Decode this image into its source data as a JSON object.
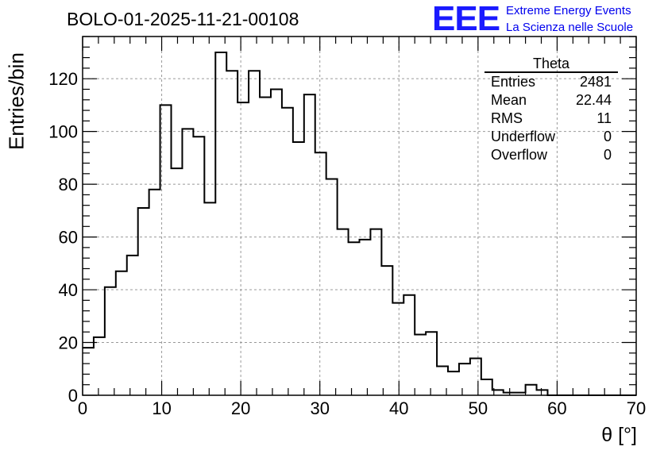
{
  "title": "BOLO-01-2025-11-21-00108",
  "logo": {
    "mark": "EEE",
    "line1": "Extreme Energy Events",
    "line2": "La Scienza nelle Scuole",
    "color": "#1a1aff"
  },
  "stats": {
    "title": "Theta",
    "rows": [
      {
        "label": "Entries",
        "value": "2481"
      },
      {
        "label": "Mean",
        "value": "22.44"
      },
      {
        "label": "RMS",
        "value": "11"
      },
      {
        "label": "Underflow",
        "value": "0"
      },
      {
        "label": "Overflow",
        "value": "0"
      }
    ]
  },
  "chart_data": {
    "type": "bar",
    "histogram": true,
    "xlabel": "θ [°]",
    "ylabel": "Entries/bin",
    "xlim": [
      0,
      70
    ],
    "ylim": [
      0,
      136
    ],
    "bin_width": 1.4,
    "xticks": [
      0,
      10,
      20,
      30,
      40,
      50,
      60,
      70
    ],
    "yticks": [
      0,
      20,
      40,
      60,
      80,
      100,
      120
    ],
    "grid": true,
    "values": [
      18,
      22,
      41,
      47,
      53,
      71,
      78,
      110,
      86,
      101,
      98,
      73,
      130,
      123,
      111,
      123,
      113,
      116,
      109,
      96,
      114,
      92,
      82,
      63,
      58,
      59,
      63,
      49,
      35,
      38,
      23,
      24,
      11,
      9,
      12,
      14,
      6,
      2,
      1,
      1,
      4,
      2,
      0,
      0,
      0,
      0,
      0,
      0,
      0,
      0
    ]
  }
}
